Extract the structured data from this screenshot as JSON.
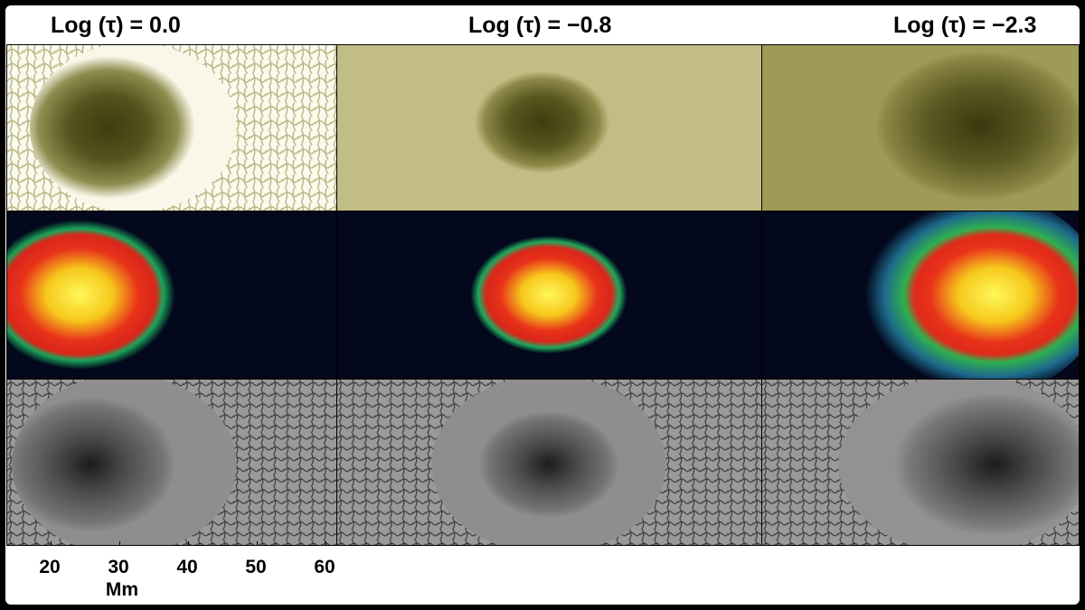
{
  "columns": [
    {
      "title": "Log (τ) = 0.0"
    },
    {
      "title": "Log (τ) = −0.8"
    },
    {
      "title": "Log (τ) = −2.3"
    }
  ],
  "rows": [
    {
      "name": "intensity-row",
      "colormap": "olive",
      "background": "#f7f6e6",
      "spot_color": "#4f4c18"
    },
    {
      "name": "magnetic-field-row",
      "colormap": "jet",
      "background": "#03081c",
      "spot_color": "#f8e020"
    },
    {
      "name": "grayscale-row",
      "colormap": "gray",
      "background": "#8a8a8a",
      "spot_color": "#222222"
    }
  ],
  "x_axis": {
    "ticks": [
      "20",
      "30",
      "40",
      "50",
      "60"
    ],
    "unit": "Mm"
  }
}
